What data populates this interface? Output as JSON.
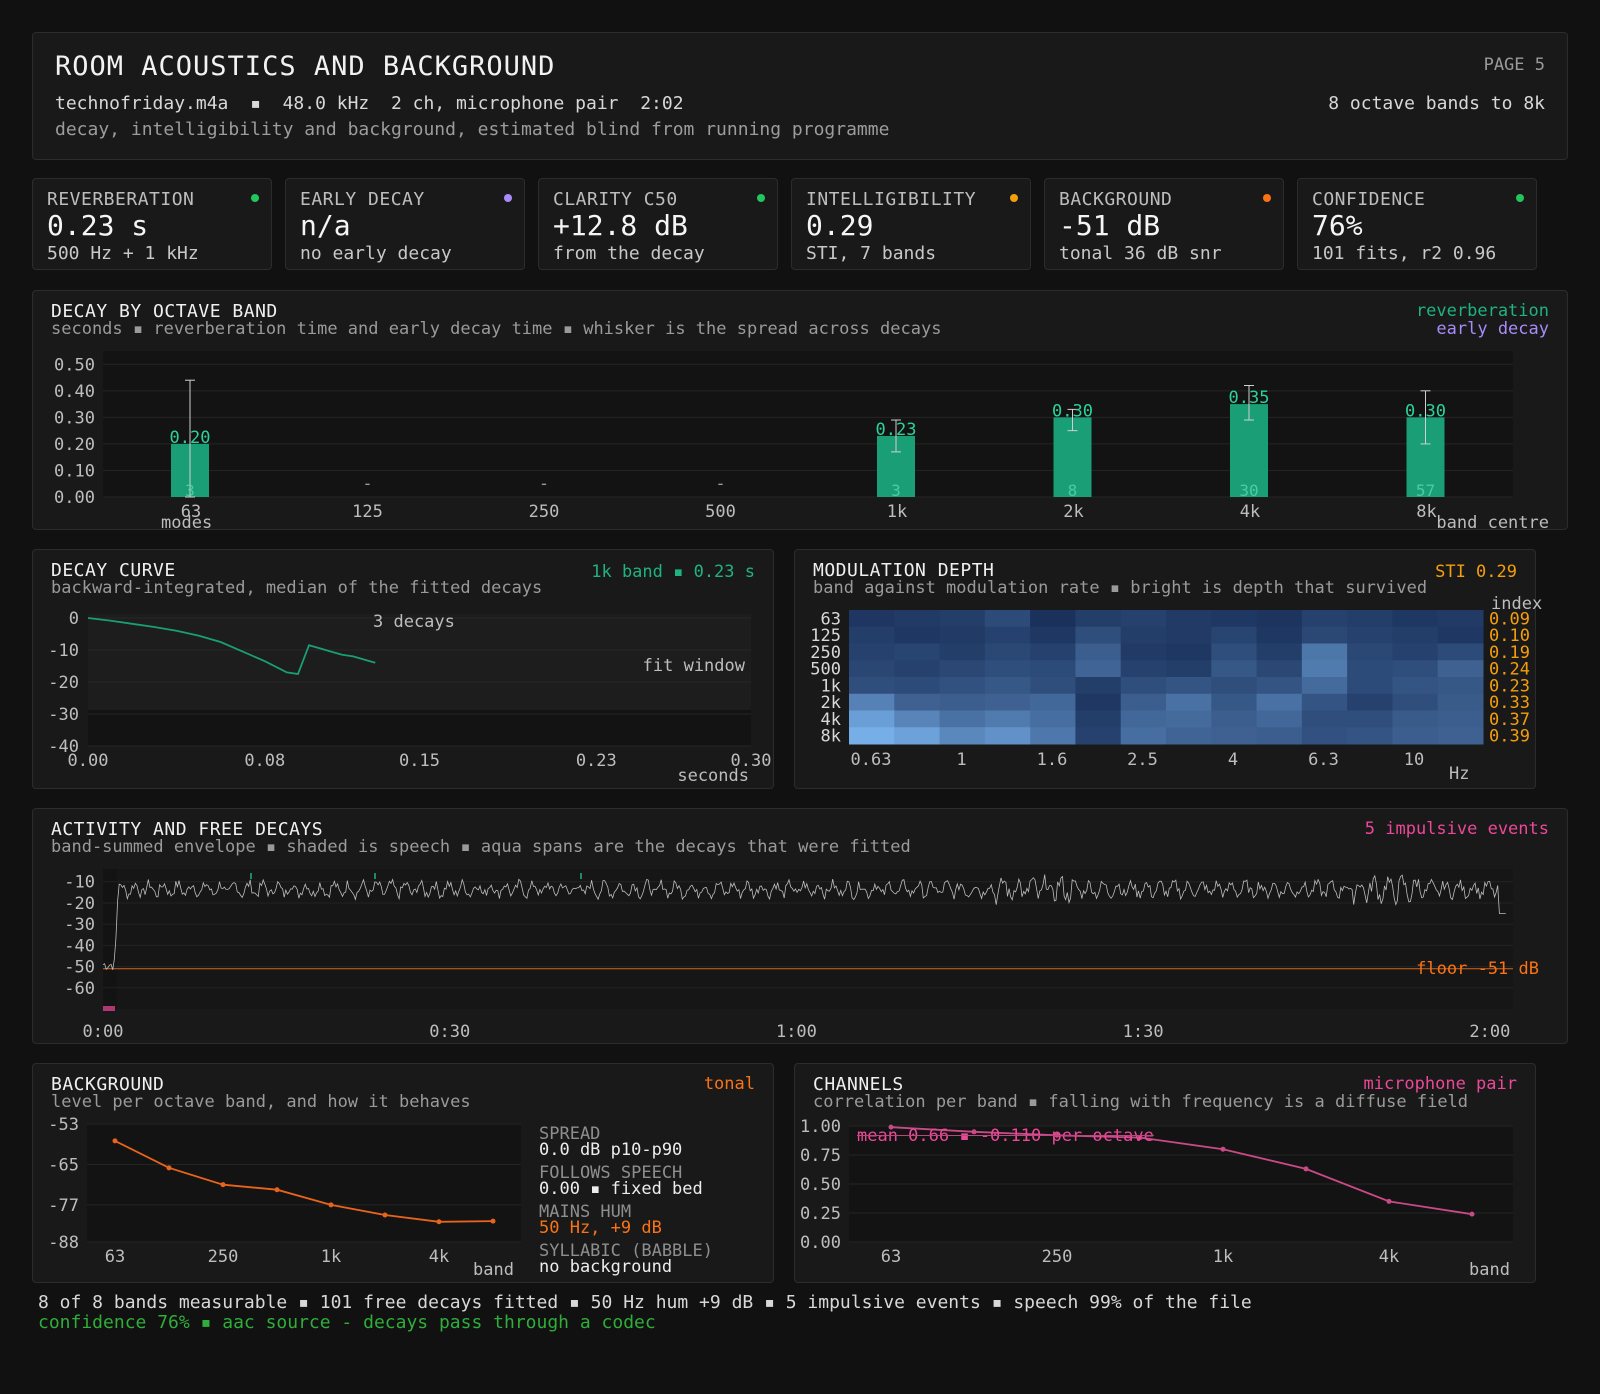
{
  "header": {
    "title": "ROOM ACOUSTICS AND BACKGROUND",
    "page": "PAGE 5",
    "file_line": "technofriday.m4a  ▪  48.0 kHz  2 ch, microphone pair  2:02",
    "bands": "8 octave bands to 8k",
    "description": "decay, intelligibility and background, estimated blind from running programme"
  },
  "cards": [
    {
      "label": "REVERBERATION",
      "value": "0.23 s",
      "note": "500 Hz + 1 kHz",
      "color": "#22c55e"
    },
    {
      "label": "EARLY DECAY",
      "value": "n/a",
      "note": "no early decay",
      "color": "#a78bfa"
    },
    {
      "label": "CLARITY C50",
      "value": "+12.8 dB",
      "note": "from the decay",
      "color": "#22c55e"
    },
    {
      "label": "INTELLIGIBILITY",
      "value": "0.29",
      "note": "STI, 7 bands",
      "color": "#f59e0b"
    },
    {
      "label": "BACKGROUND",
      "value": "-51 dB",
      "note": "tonal 36 dB snr",
      "color": "#f97316"
    },
    {
      "label": "CONFIDENCE",
      "value": "76%",
      "note": "101 fits, r2 0.96",
      "color": "#22c55e"
    }
  ],
  "decay_band": {
    "title": "DECAY BY OCTAVE BAND",
    "subtitle": "seconds ▪ reverberation time and early decay time ▪ whisker is the spread across decays",
    "legend_rt": "reverberation",
    "legend_edt": "early decay",
    "left_note": "modes",
    "right_note": "band centre",
    "color_rt": "#1a9e76",
    "color_edt": "#a78bfa"
  },
  "decay_curve": {
    "title": "DECAY CURVE",
    "subtitle": "backward-integrated, median of the fitted decays",
    "tag": "1k band ▪ 0.23 s",
    "decays_label": "3 decays",
    "fit_label": "fit window",
    "xlabel": "seconds"
  },
  "modulation": {
    "title": "MODULATION DEPTH",
    "subtitle": "band against modulation rate ▪ bright is depth that survived",
    "tag": "STI 0.29",
    "index_label": "index",
    "xlabel": "Hz"
  },
  "activity": {
    "title": "ACTIVITY AND FREE DECAYS",
    "subtitle": "band-summed envelope ▪ shaded is speech ▪ aqua spans are the decays that were fitted",
    "tag": "5 impulsive events",
    "floor_label": "floor -51 dB"
  },
  "background": {
    "title": "BACKGROUND",
    "subtitle": "level per octave band, and how it behaves",
    "tag": "tonal",
    "xlabel": "band",
    "stats": [
      {
        "label": "SPREAD",
        "value": "0.0 dB p10-p90",
        "accent": false
      },
      {
        "label": "FOLLOWS SPEECH",
        "value": "0.00 ▪ fixed bed",
        "accent": false
      },
      {
        "label": "MAINS HUM",
        "value": "50 Hz, +9 dB",
        "accent": true
      },
      {
        "label": "SYLLABIC (BABBLE)",
        "value": "no background",
        "accent": false
      }
    ]
  },
  "channels": {
    "title": "CHANNELS",
    "subtitle": "correlation per band ▪ falling with frequency is a diffuse field",
    "tag": "microphone pair",
    "mean_label": "mean 0.66 ▪ -0.110 per octave",
    "xlabel": "band"
  },
  "footer": {
    "line1": "8 of 8 bands measurable ▪ 101 free decays fitted ▪ 50 Hz hum +9 dB ▪ 5 impulsive events ▪ speech 99% of the file",
    "line2": "confidence 76% ▪ aac source - decays pass through a codec"
  },
  "chart_data": [
    {
      "id": "decay_by_band",
      "type": "bar",
      "categories": [
        "63",
        "125",
        "250",
        "500",
        "1k",
        "2k",
        "4k",
        "8k"
      ],
      "series": [
        {
          "name": "reverberation",
          "values": [
            0.2,
            null,
            null,
            null,
            0.23,
            0.3,
            0.35,
            0.3
          ],
          "whisker_low": [
            0.0,
            null,
            null,
            null,
            0.17,
            0.25,
            0.29,
            0.2
          ],
          "whisker_high": [
            0.44,
            null,
            null,
            null,
            0.29,
            0.33,
            0.42,
            0.4
          ]
        },
        {
          "name": "early decay",
          "values": [
            null,
            null,
            null,
            null,
            null,
            null,
            null,
            null
          ]
        }
      ],
      "value_labels": [
        "0.20",
        "-",
        "-",
        "-",
        "0.23",
        "0.30",
        "0.35",
        "0.30"
      ],
      "counts": [
        "3",
        "",
        "",
        "",
        "3",
        "8",
        "30",
        "57"
      ],
      "yticks": [
        "0.00",
        "0.10",
        "0.20",
        "0.30",
        "0.40",
        "0.50"
      ],
      "ylim": [
        0,
        0.55
      ]
    },
    {
      "id": "decay_curve",
      "type": "line",
      "x": [
        0.0,
        0.01,
        0.02,
        0.03,
        0.04,
        0.05,
        0.06,
        0.07,
        0.08,
        0.09,
        0.095,
        0.1,
        0.105,
        0.11,
        0.115,
        0.12,
        0.125,
        0.13
      ],
      "values": [
        0.0,
        -0.8,
        -1.8,
        -2.8,
        -4.0,
        -5.5,
        -7.5,
        -10.5,
        -13.5,
        -17.0,
        -17.5,
        -8.5,
        -9.5,
        -10.5,
        -11.5,
        -12.0,
        -13.0,
        -14.0
      ],
      "xticks": [
        "0.00",
        "0.08",
        "0.15",
        "0.23",
        "0.30"
      ],
      "yticks": [
        "0",
        "-10",
        "-20",
        "-30",
        "-40"
      ],
      "xlim": [
        0,
        0.3
      ],
      "ylim": [
        -40,
        0
      ]
    },
    {
      "id": "modulation_depth",
      "type": "heatmap",
      "rows": [
        "63",
        "125",
        "250",
        "500",
        "1k",
        "2k",
        "4k",
        "8k"
      ],
      "xticks": [
        "0.63",
        "1",
        "1.6",
        "2.5",
        "4",
        "6.3",
        "10"
      ],
      "index_values": [
        "0.09",
        "0.10",
        "0.19",
        "0.24",
        "0.23",
        "0.33",
        "0.37",
        "0.39"
      ],
      "values": [
        [
          0.15,
          0.18,
          0.2,
          0.28,
          0.12,
          0.2,
          0.22,
          0.18,
          0.16,
          0.14,
          0.22,
          0.2,
          0.16,
          0.18
        ],
        [
          0.2,
          0.16,
          0.18,
          0.22,
          0.16,
          0.3,
          0.2,
          0.18,
          0.24,
          0.16,
          0.26,
          0.22,
          0.2,
          0.16
        ],
        [
          0.22,
          0.24,
          0.2,
          0.26,
          0.22,
          0.4,
          0.18,
          0.16,
          0.3,
          0.2,
          0.55,
          0.26,
          0.22,
          0.28
        ],
        [
          0.25,
          0.22,
          0.26,
          0.3,
          0.28,
          0.44,
          0.22,
          0.2,
          0.36,
          0.26,
          0.58,
          0.28,
          0.3,
          0.42
        ],
        [
          0.3,
          0.28,
          0.32,
          0.36,
          0.3,
          0.2,
          0.3,
          0.34,
          0.3,
          0.34,
          0.48,
          0.28,
          0.34,
          0.36
        ],
        [
          0.62,
          0.42,
          0.4,
          0.42,
          0.46,
          0.16,
          0.4,
          0.52,
          0.36,
          0.52,
          0.34,
          0.22,
          0.3,
          0.38
        ],
        [
          0.8,
          0.64,
          0.52,
          0.58,
          0.5,
          0.2,
          0.46,
          0.48,
          0.4,
          0.46,
          0.3,
          0.3,
          0.38,
          0.4
        ],
        [
          0.9,
          0.82,
          0.66,
          0.72,
          0.56,
          0.22,
          0.5,
          0.44,
          0.42,
          0.4,
          0.32,
          0.34,
          0.4,
          0.42
        ]
      ]
    },
    {
      "id": "activity",
      "type": "line",
      "xticks": [
        "0:00",
        "0:30",
        "1:00",
        "1:30",
        "2:00"
      ],
      "yticks": [
        "-10",
        "-20",
        "-30",
        "-40",
        "-50",
        "-60"
      ],
      "xlim": [
        0,
        122
      ],
      "ylim": [
        -70,
        -4
      ],
      "floor": -51
    },
    {
      "id": "background_level",
      "type": "line",
      "categories": [
        "63",
        "125",
        "250",
        "500",
        "1k",
        "2k",
        "4k",
        "8k"
      ],
      "xticks": [
        "63",
        "250",
        "1k",
        "4k"
      ],
      "values": [
        -58,
        -66,
        -71,
        -72.5,
        -77,
        -80,
        -82,
        -81.8
      ],
      "yticks": [
        "-53",
        "-65",
        "-77",
        "-88"
      ],
      "ylim": [
        -88,
        -53
      ]
    },
    {
      "id": "channel_correlation",
      "type": "line",
      "categories": [
        "63",
        "125",
        "250",
        "500",
        "1k",
        "2k",
        "4k",
        "8k"
      ],
      "xticks": [
        "63",
        "250",
        "1k",
        "4k"
      ],
      "values": [
        0.99,
        0.95,
        0.92,
        0.9,
        0.8,
        0.63,
        0.35,
        0.24
      ],
      "yticks": [
        "1.00",
        "0.75",
        "0.50",
        "0.25",
        "0.00"
      ],
      "ylim": [
        0,
        1
      ]
    }
  ]
}
